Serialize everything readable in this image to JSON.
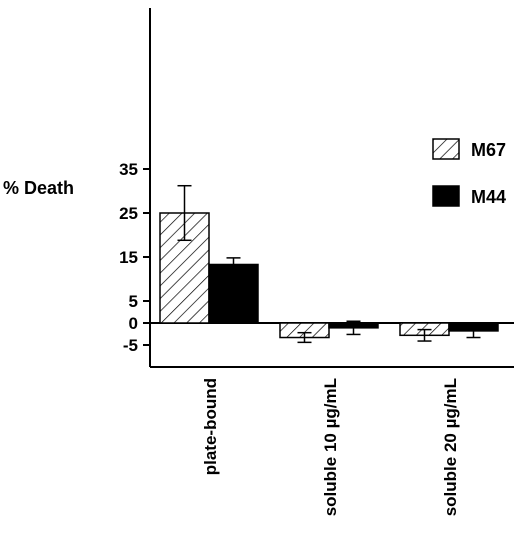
{
  "chart_data": {
    "type": "bar",
    "title": "",
    "xlabel": "",
    "ylabel": "% Death",
    "ylim": [
      -5,
      35
    ],
    "yticks": [
      35,
      25,
      15,
      5,
      0,
      -5
    ],
    "categories": [
      "plate-bound",
      "soluble 10 µg/mL",
      "soluble 20 µg/mL"
    ],
    "series": [
      {
        "name": "M67",
        "values": [
          25.0,
          -3.3,
          -2.8
        ],
        "errors": [
          6.2,
          1.1,
          1.3
        ],
        "fill": "hatched",
        "color": "#000000"
      },
      {
        "name": "M44",
        "values": [
          13.3,
          -1.1,
          -1.8
        ],
        "errors": [
          1.5,
          1.5,
          1.5
        ],
        "fill": "solid",
        "color": "#000000"
      }
    ],
    "legend_position": "right",
    "grid": false
  }
}
